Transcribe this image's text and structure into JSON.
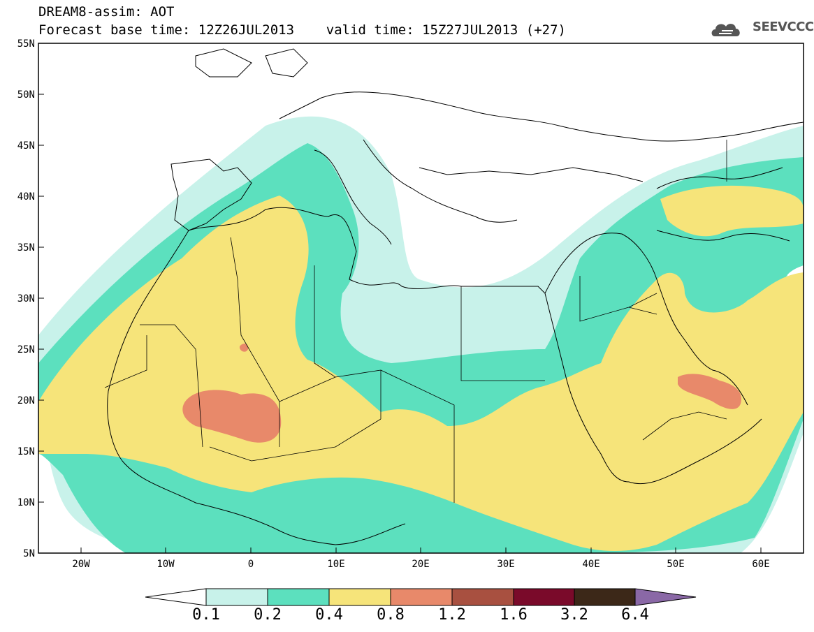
{
  "header": {
    "title_line1": "DREAM8-assim: AOT",
    "title_line2": "Forecast base time: 12Z26JUL2013    valid time: 15Z27JUL2013 (+27)",
    "logo_text": "SEEVCCC"
  },
  "map": {
    "lon_range": [
      -25,
      65
    ],
    "lat_range": [
      5,
      55
    ],
    "lat_labels": [
      "55N",
      "50N",
      "45N",
      "40N",
      "35N",
      "30N",
      "25N",
      "20N",
      "15N",
      "10N",
      "5N"
    ],
    "lon_labels": [
      "20W",
      "10W",
      "0",
      "10E",
      "20E",
      "30E",
      "40E",
      "50E",
      "60E"
    ],
    "field": "Aerosol Optical Thickness"
  },
  "colorbar": {
    "levels": [
      "0.1",
      "0.2",
      "0.4",
      "0.8",
      "1.2",
      "1.6",
      "3.2",
      "6.4"
    ],
    "colors": [
      "#ffffff",
      "#c8f2ea",
      "#5ce0be",
      "#f6e47a",
      "#e8896a",
      "#a85040",
      "#7a0a2a",
      "#3c2818",
      "#8a68a6"
    ]
  }
}
